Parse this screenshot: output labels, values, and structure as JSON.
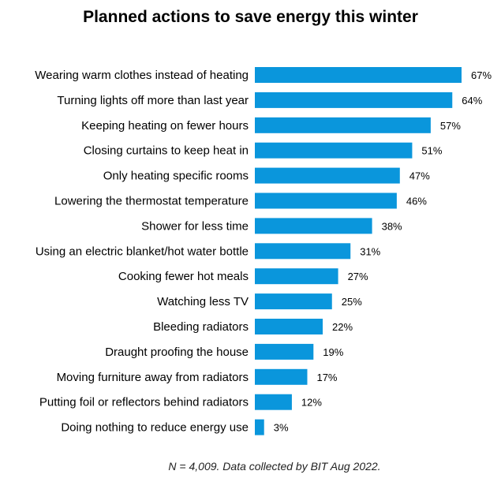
{
  "chart_data": {
    "type": "bar",
    "orientation": "horizontal",
    "title": "Planned actions to save energy this winter",
    "xlabel": "",
    "ylabel": "",
    "value_suffix": "%",
    "xlim": [
      0,
      67
    ],
    "grid": false,
    "bar_color": "#0a96dc",
    "categories": [
      "Wearing warm clothes instead of heating",
      "Turning lights off more than last year",
      "Keeping heating on fewer hours",
      "Closing curtains to keep heat in",
      "Only heating specific rooms",
      "Lowering the thermostat temperature",
      "Shower for less time",
      "Using an electric blanket/hot water bottle",
      "Cooking fewer hot meals",
      "Watching less TV",
      "Bleeding radiators",
      "Draught proofing the house",
      "Moving furniture away from radiators",
      "Putting foil or reflectors behind radiators",
      "Doing nothing to reduce energy use"
    ],
    "values": [
      67,
      64,
      57,
      51,
      47,
      46,
      38,
      31,
      27,
      25,
      22,
      19,
      17,
      12,
      3
    ],
    "footnote": "N = 4,009. Data collected by BIT Aug 2022."
  }
}
